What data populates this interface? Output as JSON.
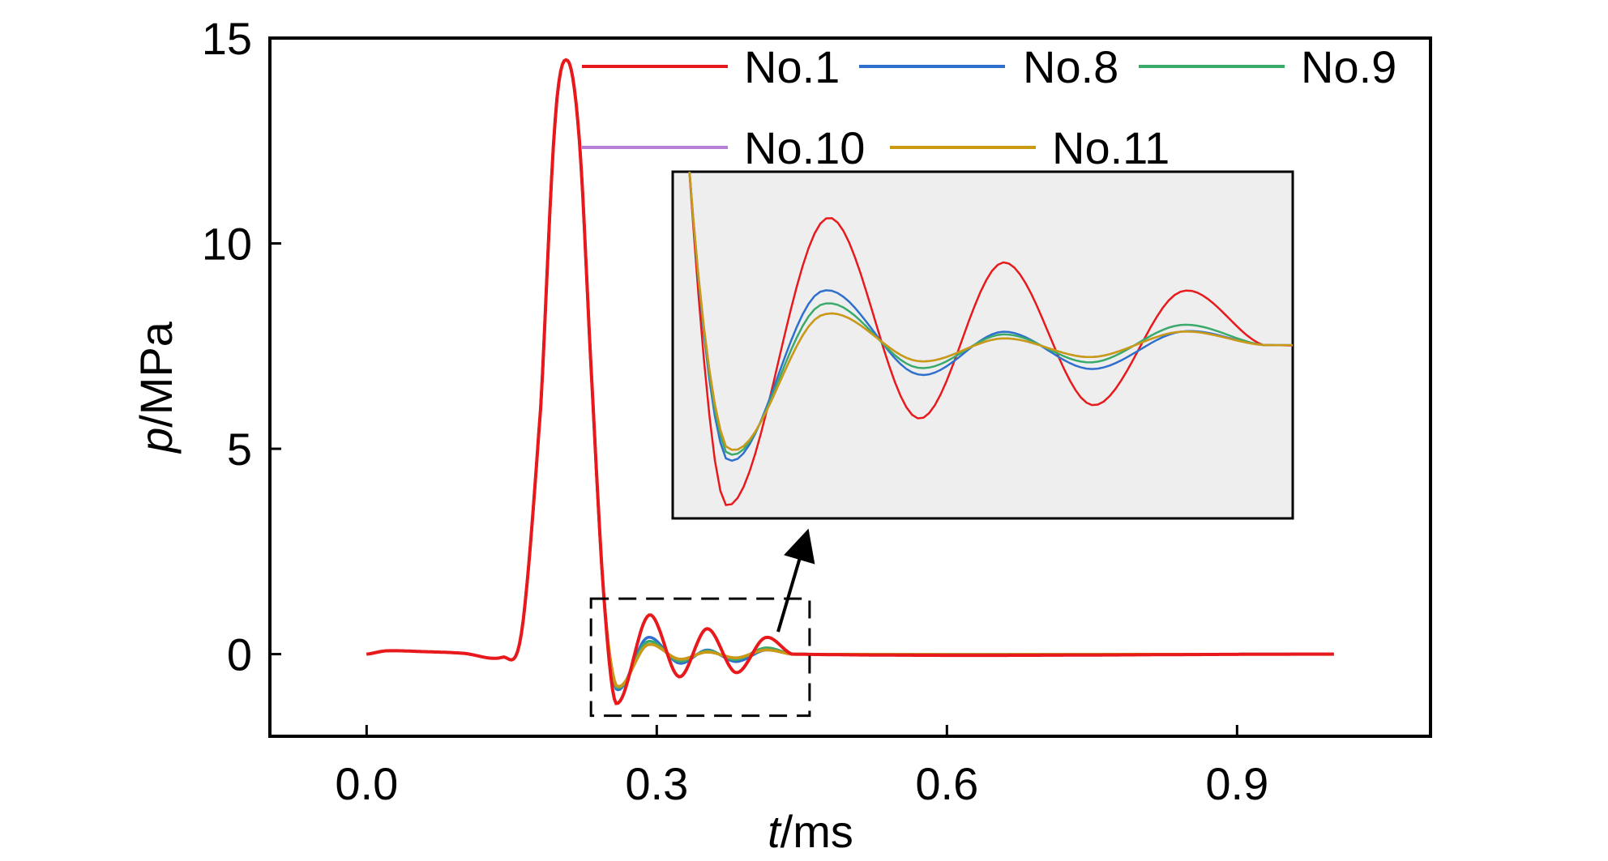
{
  "chart_data": {
    "type": "line",
    "xlabel": {
      "var": "t",
      "unit": "/ms"
    },
    "ylabel": {
      "var": "p",
      "unit": "/MPa"
    },
    "xlim": [
      -0.1,
      1.1
    ],
    "ylim": [
      -2,
      15
    ],
    "xticks": [
      0.0,
      0.3,
      0.6,
      0.9
    ],
    "xtick_labels": [
      "0.0",
      "0.3",
      "0.6",
      "0.9"
    ],
    "yticks": [
      0,
      5,
      10,
      15
    ],
    "ytick_labels": [
      "0",
      "5",
      "10",
      "15"
    ],
    "grid": false,
    "legend_position": "top-right",
    "series": [
      {
        "name": "No.1",
        "color": "#e8191c",
        "peak": 14.45,
        "osc": [
          [
            0.258,
            -1.2
          ],
          [
            0.292,
            0.95
          ],
          [
            0.323,
            -0.55
          ],
          [
            0.352,
            0.62
          ],
          [
            0.382,
            -0.45
          ],
          [
            0.412,
            0.4
          ],
          [
            0.44,
            0.0
          ]
        ]
      },
      {
        "name": "No.8",
        "color": "#2f6fce",
        "peak": 14.45,
        "osc": [
          [
            0.258,
            -0.85
          ],
          [
            0.29,
            0.4
          ],
          [
            0.323,
            -0.22
          ],
          [
            0.352,
            0.1
          ],
          [
            0.382,
            -0.18
          ],
          [
            0.412,
            0.1
          ],
          [
            0.44,
            0.0
          ]
        ]
      },
      {
        "name": "No.9",
        "color": "#3aaa6a",
        "peak": 14.45,
        "osc": [
          [
            0.258,
            -0.8
          ],
          [
            0.29,
            0.3
          ],
          [
            0.323,
            -0.17
          ],
          [
            0.352,
            0.08
          ],
          [
            0.382,
            -0.13
          ],
          [
            0.412,
            0.15
          ],
          [
            0.44,
            0.0
          ]
        ]
      },
      {
        "name": "No.10",
        "color": "#b77fd6",
        "peak": 14.45,
        "osc": [
          [
            0.258,
            -0.76
          ],
          [
            0.29,
            0.22
          ],
          [
            0.323,
            -0.12
          ],
          [
            0.352,
            0.05
          ],
          [
            0.382,
            -0.09
          ],
          [
            0.412,
            0.1
          ],
          [
            0.44,
            0.0
          ]
        ]
      },
      {
        "name": "No.11",
        "color": "#c99a12",
        "peak": 14.45,
        "osc": [
          [
            0.258,
            -0.76
          ],
          [
            0.29,
            0.22
          ],
          [
            0.323,
            -0.12
          ],
          [
            0.352,
            0.05
          ],
          [
            0.382,
            -0.09
          ],
          [
            0.412,
            0.1
          ],
          [
            0.44,
            0.0
          ]
        ]
      }
    ],
    "common_pulse": [
      [
        0.0,
        0.0
      ],
      [
        0.02,
        0.08
      ],
      [
        0.06,
        0.06
      ],
      [
        0.1,
        0.02
      ],
      [
        0.14,
        -0.08
      ],
      [
        0.16,
        0.5
      ],
      [
        0.18,
        6.0
      ],
      [
        0.195,
        13.0
      ],
      [
        0.208,
        14.45
      ],
      [
        0.22,
        12.5
      ],
      [
        0.232,
        7.0
      ],
      [
        0.245,
        1.5
      ]
    ],
    "x_end": 1.0,
    "inset": {
      "xlim": [
        0.24,
        0.45
      ],
      "ylim": [
        -1.3,
        1.3
      ],
      "background": "#eeeeee"
    },
    "zoom_box": {
      "xlim": [
        0.232,
        0.458
      ],
      "ylim": [
        -1.5,
        1.35
      ]
    }
  }
}
